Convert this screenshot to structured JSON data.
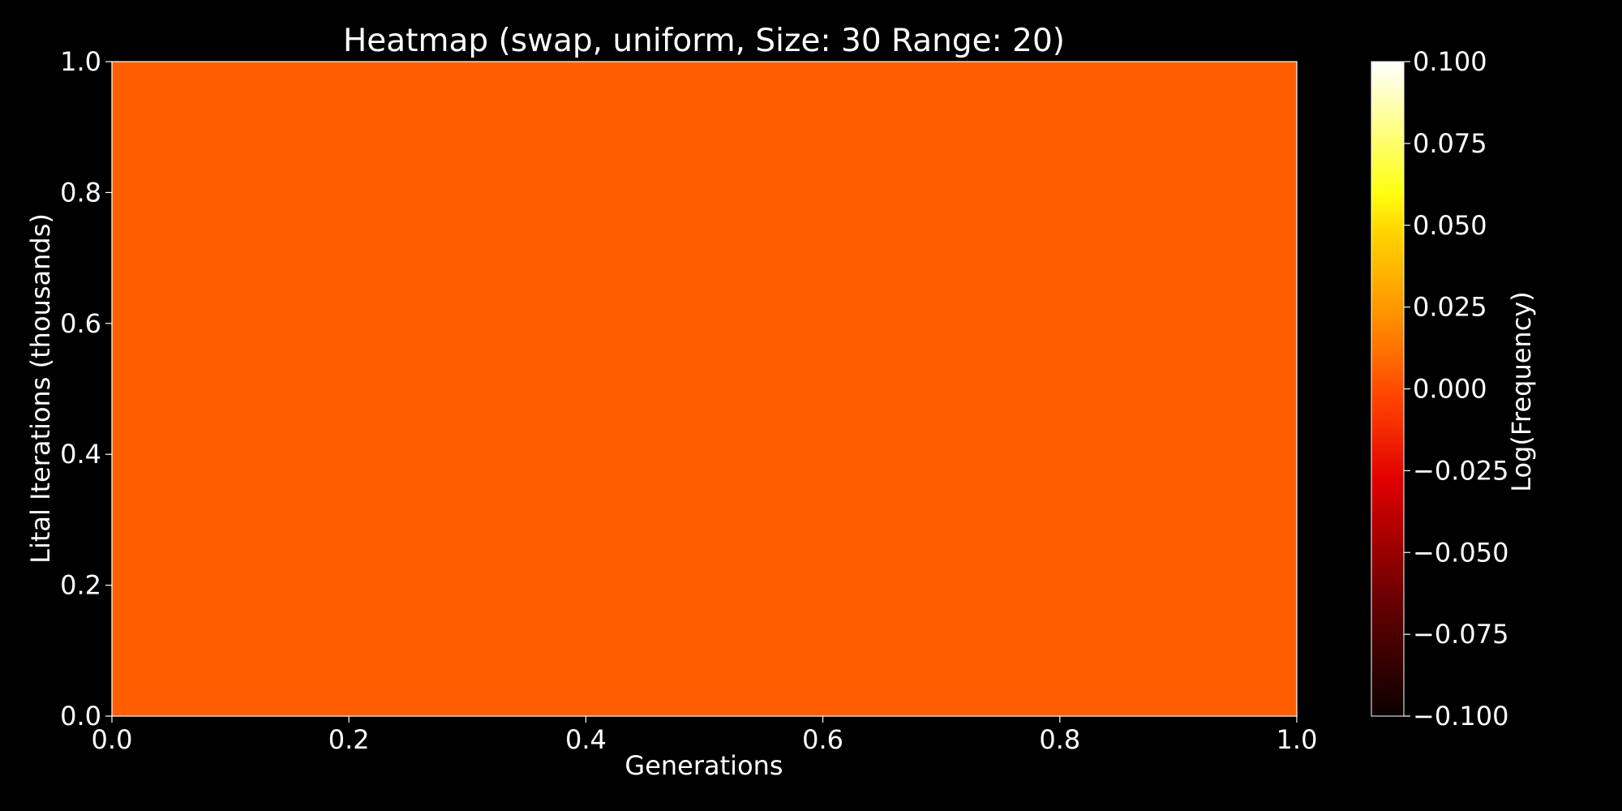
{
  "chart_data": {
    "type": "heatmap",
    "title": "Heatmap (swap, uniform, Size: 30 Range: 20)",
    "xlabel": "Generations",
    "ylabel": "Lital Iterations (thousands)",
    "xlim": [
      0.0,
      1.0
    ],
    "ylim": [
      0.0,
      1.0
    ],
    "x_ticks": [
      "0.0",
      "0.2",
      "0.4",
      "0.6",
      "0.8",
      "1.0"
    ],
    "y_ticks": [
      "0.0",
      "0.2",
      "0.4",
      "0.6",
      "0.8",
      "1.0"
    ],
    "values": [
      [
        0.0
      ]
    ],
    "grid": false,
    "colorbar": {
      "label": "Log(Frequency)",
      "colormap": "hot",
      "range": [
        -0.1,
        0.1
      ],
      "ticks": [
        "0.100",
        "0.075",
        "0.050",
        "0.025",
        "0.000",
        "−0.025",
        "−0.050",
        "−0.075",
        "−0.100"
      ]
    },
    "cell_color": "#ff5d00",
    "background_color": "#000000",
    "text_color": "#ffffff"
  }
}
